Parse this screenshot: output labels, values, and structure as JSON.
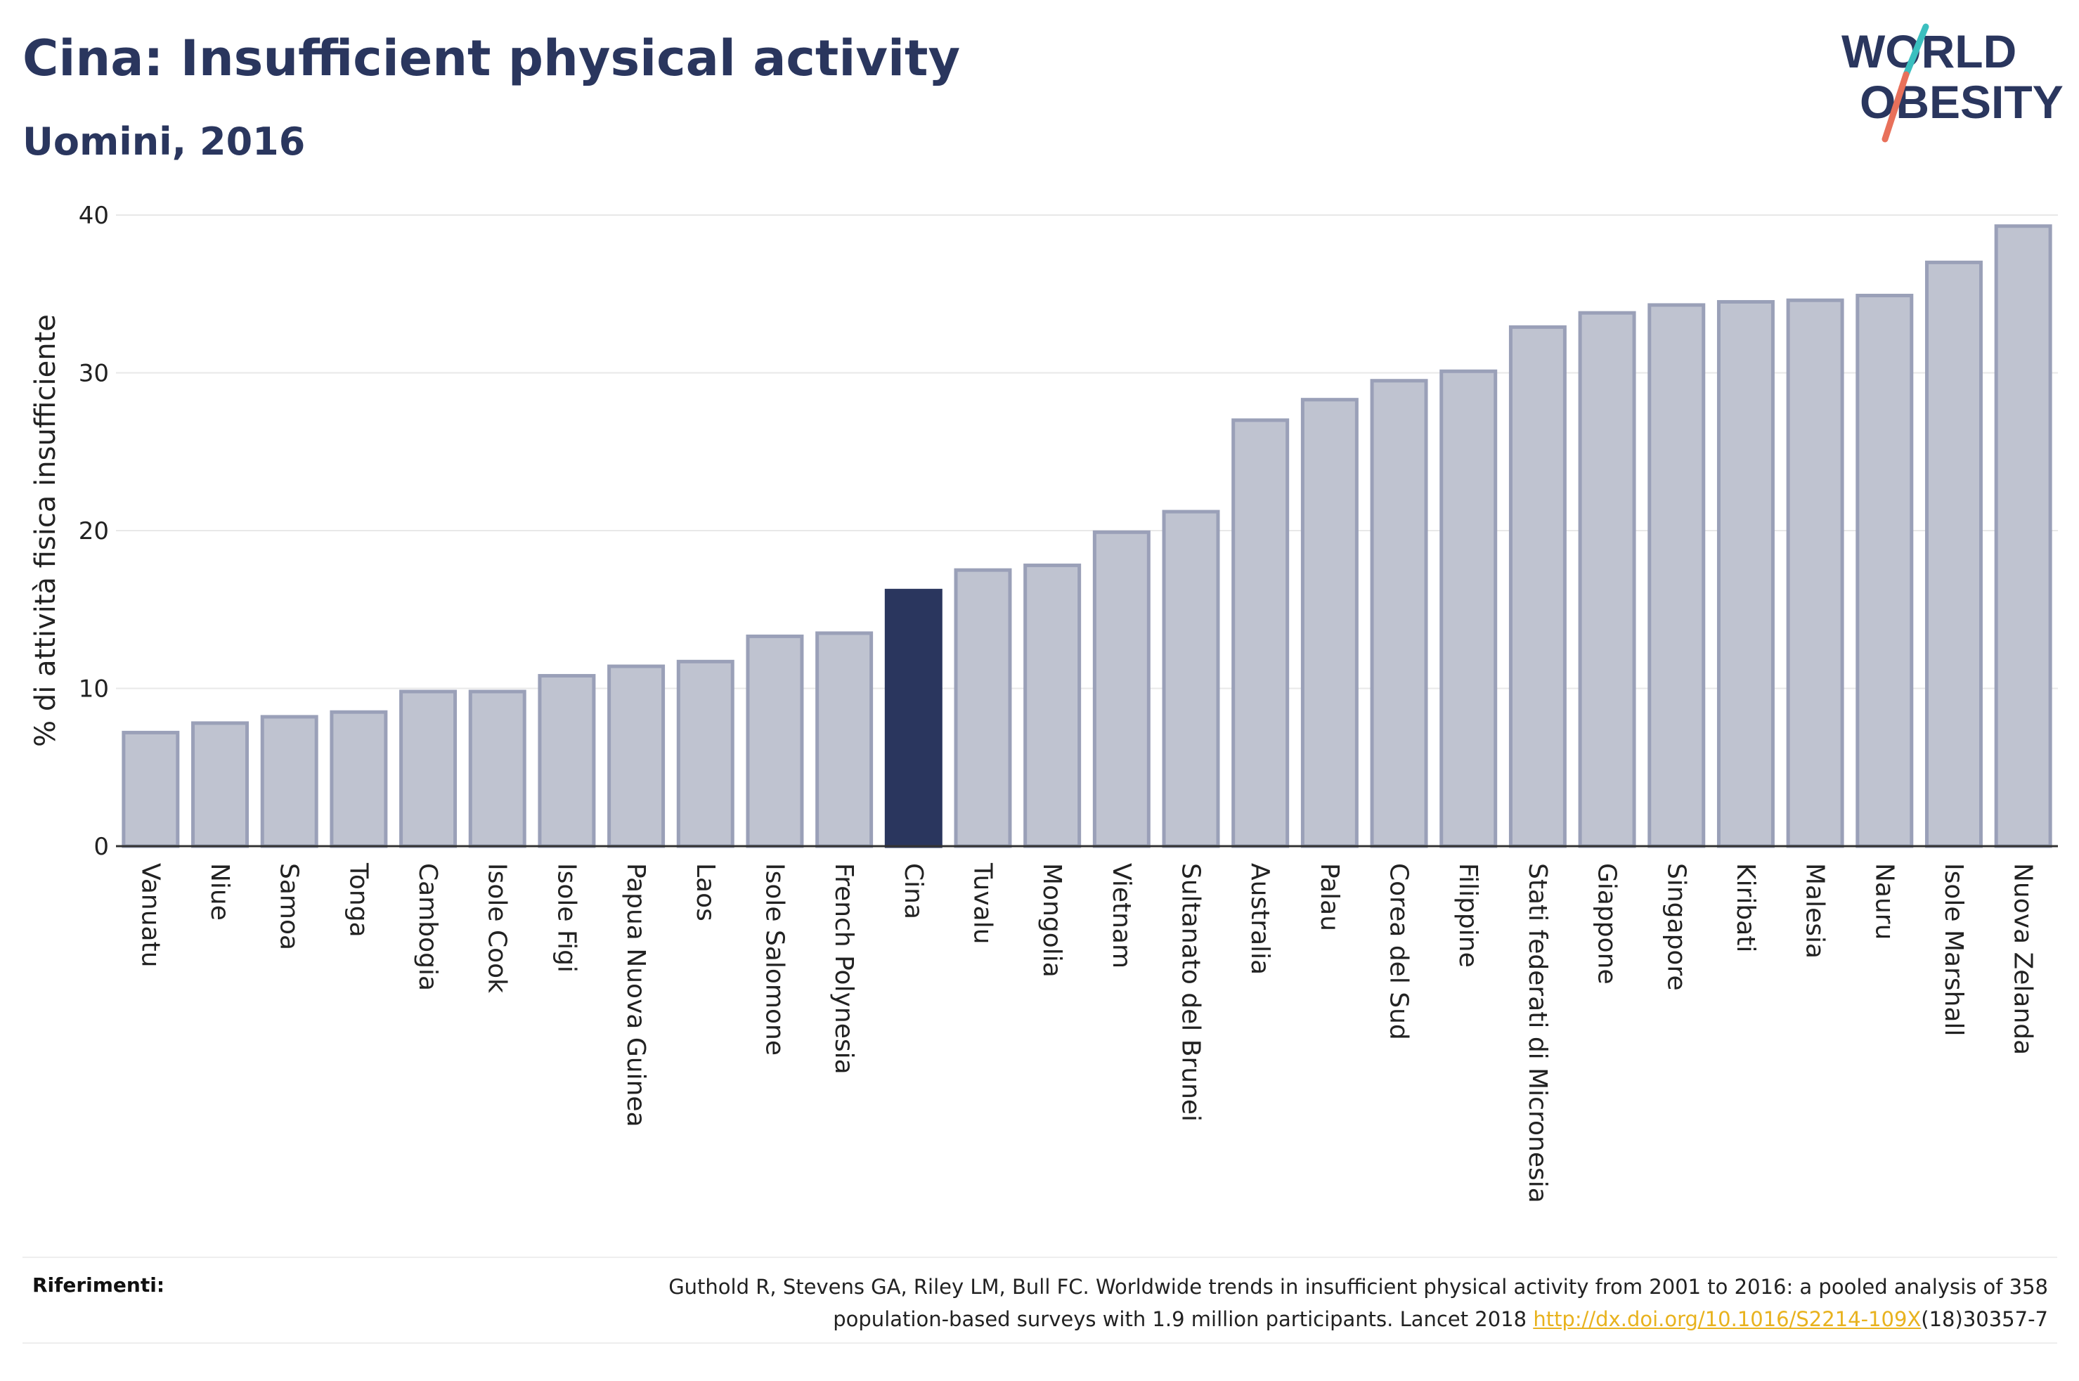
{
  "title": "Cina: Insufficient physical activity",
  "subtitle": "Uomini, 2016",
  "logo": {
    "line1": "WORLD",
    "line2": "OBESITY",
    "colors": {
      "text": "#2a365e",
      "slash_top": "#3bbfbf",
      "slash_bottom": "#e8705a"
    }
  },
  "chart_data": {
    "type": "bar",
    "ylabel": "% di attività fisica insufficiente",
    "xlabel": "",
    "ylim": [
      0,
      40
    ],
    "yticks": [
      0,
      10,
      20,
      30,
      40
    ],
    "grid": true,
    "highlight": "Cina",
    "colors": {
      "bar": "#bfc3d0",
      "bar_border": "#9aa0b8",
      "highlight": "#2a365e",
      "gridline": "#e8e8e8",
      "baseline": "#333333"
    },
    "categories": [
      "Vanuatu",
      "Niue",
      "Samoa",
      "Tonga",
      "Cambogia",
      "Isole Cook",
      "Isole Figi",
      "Papua Nuova Guinea",
      "Laos",
      "Isole Salomone",
      "French Polynesia",
      "Cina",
      "Tuvalu",
      "Mongolia",
      "Vietnam",
      "Sultanato del Brunei",
      "Australia",
      "Palau",
      "Corea del Sud",
      "Filippine",
      "Stati federati di Micronesia",
      "Giappone",
      "Singapore",
      "Kiribati",
      "Malesia",
      "Nauru",
      "Isole Marshall",
      "Nuova Zelanda"
    ],
    "values": [
      7.2,
      7.8,
      8.2,
      8.5,
      9.8,
      9.8,
      10.8,
      11.4,
      11.7,
      13.3,
      13.5,
      16.2,
      17.5,
      17.8,
      19.9,
      21.2,
      27.0,
      28.3,
      29.5,
      30.1,
      32.9,
      33.8,
      34.3,
      34.5,
      34.6,
      34.9,
      37.0,
      39.3
    ]
  },
  "references": {
    "label": "Riferimenti:",
    "text_line1": "Guthold R, Stevens GA, Riley LM, Bull FC. Worldwide trends in insufficient physical activity from 2001 to 2016: a pooled analysis of 358",
    "text_line2_before": "population-based surveys with 1.9 million participants. Lancet 2018 ",
    "link": "http://dx.doi.org/10.1016/S2214-109X",
    "text_line2_after": "(18)30357-7"
  }
}
